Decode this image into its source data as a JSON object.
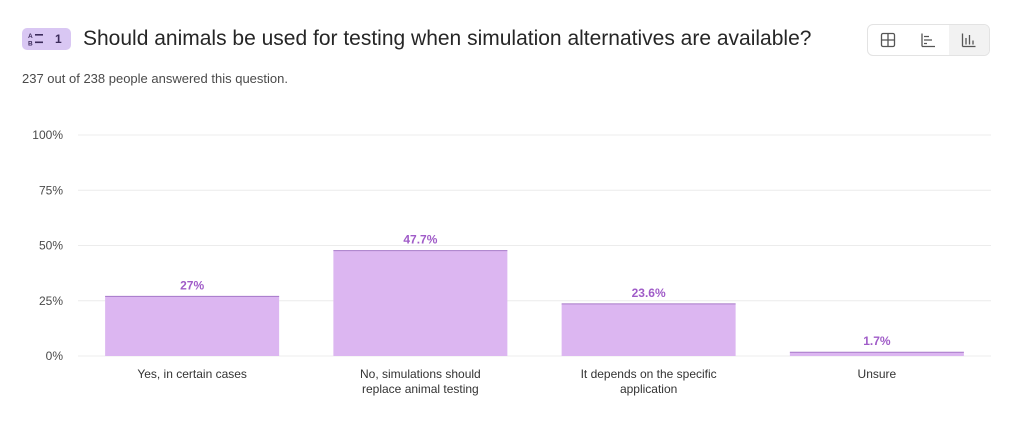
{
  "question": {
    "number": "1",
    "type_icon": "multiple-choice-icon",
    "title": "Should animals be used for testing when simulation alternatives are available?",
    "response_summary": "237 out of 238 people answered this question."
  },
  "view_toggle": {
    "options": [
      {
        "icon": "table-view-icon"
      },
      {
        "icon": "horizontal-bar-view-icon"
      },
      {
        "icon": "vertical-bar-view-icon",
        "active": true
      }
    ]
  },
  "colors": {
    "bar_fill": "#dcb6f1",
    "bar_top": "#a678c8",
    "value_label": "#a05cc8",
    "badge_bg": "#d9c7f3",
    "grid": "#ececec"
  },
  "chart_data": {
    "type": "bar",
    "categories": [
      [
        "Yes, in certain cases"
      ],
      [
        "No, simulations should",
        "replace animal testing"
      ],
      [
        "It depends on the specific",
        "application"
      ],
      [
        "Unsure"
      ]
    ],
    "values": [
      27,
      47.7,
      23.6,
      1.7
    ],
    "value_labels": [
      "27%",
      "47.7%",
      "23.6%",
      "1.7%"
    ],
    "ylim": [
      0,
      100
    ],
    "yticks": [
      0,
      25,
      50,
      75,
      100
    ],
    "ytick_labels": [
      "0%",
      "25%",
      "50%",
      "75%",
      "100%"
    ],
    "grid": true
  }
}
